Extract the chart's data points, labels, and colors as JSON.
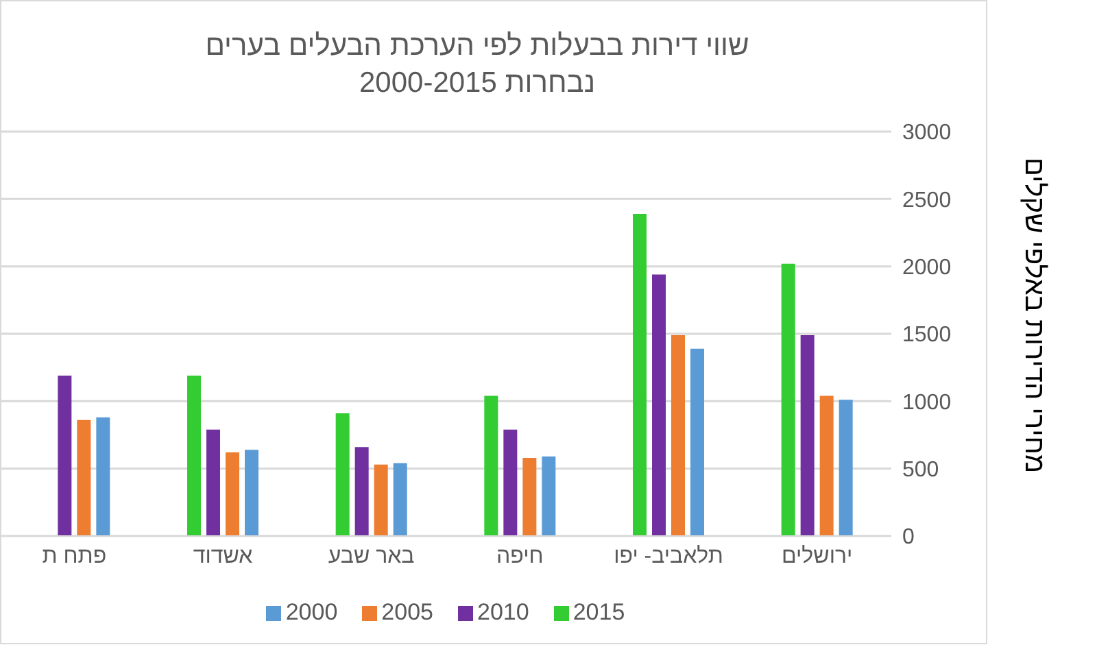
{
  "chart_data": {
    "type": "bar",
    "title": "שווי דירות בבעלות לפי הערכת הבעלים בערים נבחרות 2000-2015",
    "ylabel": "מחירי הדירות באלפי שקלים",
    "categories": [
      "פתח ת",
      "אשדוד",
      "באר שבע",
      "חיפה",
      "תלאביב- יפו",
      "ירושלים"
    ],
    "series": [
      {
        "name": "2000",
        "color": "#5b9bd5",
        "values": [
          880,
          640,
          540,
          590,
          1390,
          1010
        ]
      },
      {
        "name": "2005",
        "color": "#ed7d31",
        "values": [
          860,
          620,
          530,
          580,
          1490,
          1040
        ]
      },
      {
        "name": "2010",
        "color": "#7030a0",
        "values": [
          1190,
          790,
          660,
          790,
          1940,
          1490
        ]
      },
      {
        "name": "2015",
        "color": "#33cc33",
        "values": [
          null,
          1190,
          910,
          1040,
          2390,
          2020
        ]
      }
    ],
    "ylim": [
      0,
      3000
    ],
    "yticks": [
      0,
      500,
      1000,
      1500,
      2000,
      2500,
      3000
    ],
    "grid": "y",
    "legend": "bottom"
  }
}
